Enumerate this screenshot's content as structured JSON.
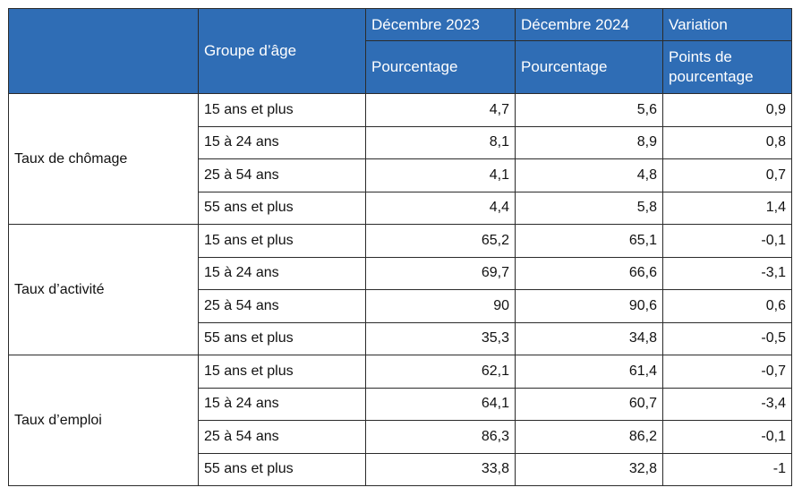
{
  "header": {
    "group_label": "Groupe d’âge",
    "col1_title": "Décembre 2023",
    "col2_title": "Décembre 2024",
    "col3_title": "Variation",
    "col1_unit": "Pourcentage",
    "col2_unit": "Pourcentage",
    "col3_unit": "Points de pourcentage"
  },
  "sections": [
    {
      "indicator": "Taux de chômage",
      "rows": [
        {
          "age": "15 ans et plus",
          "d2023": "4,7",
          "d2024": "5,6",
          "var": "0,9"
        },
        {
          "age": "15 à 24 ans",
          "d2023": "8,1",
          "d2024": "8,9",
          "var": "0,8"
        },
        {
          "age": "25 à 54 ans",
          "d2023": "4,1",
          "d2024": "4,8",
          "var": "0,7"
        },
        {
          "age": "55 ans et plus",
          "d2023": "4,4",
          "d2024": "5,8",
          "var": "1,4"
        }
      ]
    },
    {
      "indicator": "Taux d’activité",
      "rows": [
        {
          "age": "15 ans et plus",
          "d2023": "65,2",
          "d2024": "65,1",
          "var": "-0,1"
        },
        {
          "age": "15 à 24 ans",
          "d2023": "69,7",
          "d2024": "66,6",
          "var": "-3,1"
        },
        {
          "age": "25 à 54 ans",
          "d2023": "90",
          "d2024": "90,6",
          "var": "0,6"
        },
        {
          "age": "55 ans et plus",
          "d2023": "35,3",
          "d2024": "34,8",
          "var": "-0,5"
        }
      ]
    },
    {
      "indicator": "Taux d’emploi",
      "rows": [
        {
          "age": "15 ans et plus",
          "d2023": "62,1",
          "d2024": "61,4",
          "var": "-0,7"
        },
        {
          "age": "15 à 24 ans",
          "d2023": "64,1",
          "d2024": "60,7",
          "var": "-3,4"
        },
        {
          "age": "25 à 54 ans",
          "d2023": "86,3",
          "d2024": "86,2",
          "var": "-0,1"
        },
        {
          "age": "55 ans et plus",
          "d2023": "33,8",
          "d2024": "32,8",
          "var": "-1"
        }
      ]
    }
  ]
}
